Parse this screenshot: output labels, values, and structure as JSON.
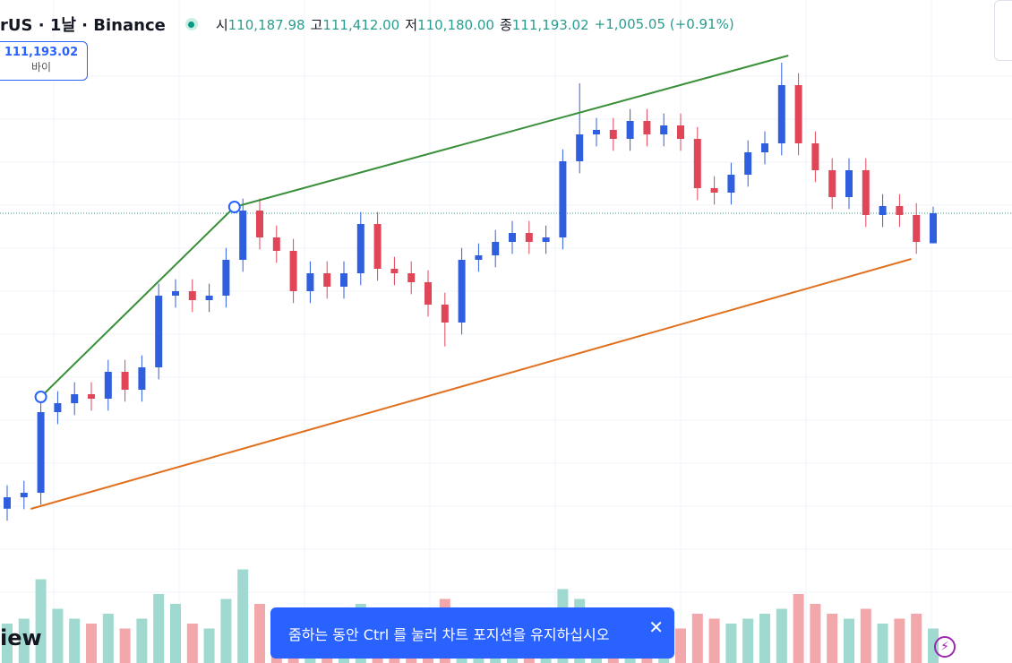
{
  "header": {
    "symbol": "rUS · 1날 · Binance",
    "fields": [
      {
        "label": "시",
        "value": "110,187.98"
      },
      {
        "label": "고",
        "value": "111,412.00"
      },
      {
        "label": "저",
        "value": "110,180.00"
      },
      {
        "label": "종",
        "value": "111,193.02"
      }
    ],
    "change": "+1,005.05 (+0.91%)"
  },
  "price_tag": {
    "price": "111,193.02",
    "side": "바이"
  },
  "toast": {
    "message": "줌하는 동안 Ctrl 를 눌러 차트 포지션을 유지하십시오"
  },
  "brand": "iew",
  "chart_data": {
    "type": "candlestick",
    "open": [
      101300,
      101683,
      101833,
      104533,
      104833,
      105133,
      104983,
      105883,
      105283,
      106033,
      108433,
      108583,
      108283,
      108433,
      109633,
      111283,
      110383,
      109933,
      108583,
      109183,
      108733,
      109183,
      110833,
      109333,
      109183,
      108883,
      108133,
      107533,
      109633,
      109783,
      110233,
      110533,
      110233,
      110383,
      112933,
      113833,
      113983,
      113683,
      114283,
      113833,
      114133,
      113683,
      112033,
      111883,
      112483,
      113233,
      113533,
      115483,
      113533,
      112633,
      111733,
      112633,
      111133,
      111433,
      111133,
      110187.98
    ],
    "high": [
      102083,
      102233,
      104933,
      105233,
      105533,
      105533,
      106283,
      106283,
      106433,
      108833,
      108983,
      108983,
      108833,
      110033,
      111683,
      111683,
      110783,
      110333,
      109583,
      109583,
      109583,
      111233,
      111233,
      109733,
      109583,
      109283,
      108533,
      110033,
      110183,
      110633,
      110933,
      110933,
      110783,
      113333,
      115543,
      114383,
      114383,
      114683,
      114683,
      114533,
      114533,
      114083,
      112433,
      112883,
      113633,
      113933,
      116233,
      115883,
      113933,
      113033,
      113033,
      113033,
      111833,
      111833,
      111533,
      111412
    ],
    "low": [
      100900,
      101283,
      101433,
      104133,
      104433,
      104583,
      104583,
      104883,
      104883,
      105633,
      108033,
      107883,
      107883,
      108033,
      109233,
      109983,
      109533,
      108183,
      108183,
      108333,
      108333,
      108783,
      108933,
      108783,
      108483,
      107733,
      106733,
      107133,
      109233,
      109383,
      109833,
      109833,
      109833,
      109983,
      112533,
      113433,
      113283,
      113283,
      113433,
      113433,
      113283,
      111633,
      111483,
      111483,
      112083,
      112833,
      113133,
      113133,
      112233,
      111333,
      111333,
      110733,
      110733,
      110733,
      109833,
      110180
    ],
    "close": [
      101683,
      101833,
      104533,
      104833,
      105133,
      104983,
      105883,
      105283,
      106033,
      108433,
      108583,
      108283,
      108433,
      109633,
      111283,
      110383,
      109933,
      108583,
      109183,
      108733,
      109183,
      110833,
      109333,
      109183,
      108883,
      108133,
      107533,
      109633,
      109783,
      110233,
      110533,
      110233,
      110383,
      112933,
      113833,
      113983,
      113683,
      114283,
      113833,
      114133,
      113683,
      112033,
      111883,
      112483,
      113233,
      113533,
      115483,
      113533,
      112633,
      111733,
      112633,
      111133,
      111433,
      111133,
      110233,
      111193.02
    ],
    "volume": [
      8,
      9,
      17,
      11,
      9,
      8,
      10,
      7,
      9,
      14,
      12,
      8,
      7,
      13,
      19,
      12,
      9,
      11,
      8,
      7,
      8,
      12,
      9,
      7,
      8,
      9,
      13,
      11,
      8,
      7,
      9,
      8,
      7,
      15,
      13,
      10,
      8,
      9,
      7,
      8,
      7,
      10,
      9,
      8,
      9,
      10,
      11,
      14,
      12,
      10,
      9,
      11,
      8,
      9,
      10,
      7
    ],
    "ylim": [
      99733,
      118333
    ],
    "y2lim": [
      0,
      60
    ],
    "up_color": "#2f5fde",
    "down_color": "#e04658",
    "volume_up_color": "#9fd9cf",
    "volume_down_color": "#f2a7ab",
    "trendlines": [
      {
        "color": "#3a8f3a",
        "points": [
          [
            2,
            105043
          ],
          [
            13.5,
            111403
          ],
          [
            46.4,
            116473
          ]
        ]
      },
      {
        "color": "#e0701e",
        "points": [
          [
            1.4,
            101293
          ],
          [
            53.7,
            109663
          ]
        ]
      }
    ]
  }
}
